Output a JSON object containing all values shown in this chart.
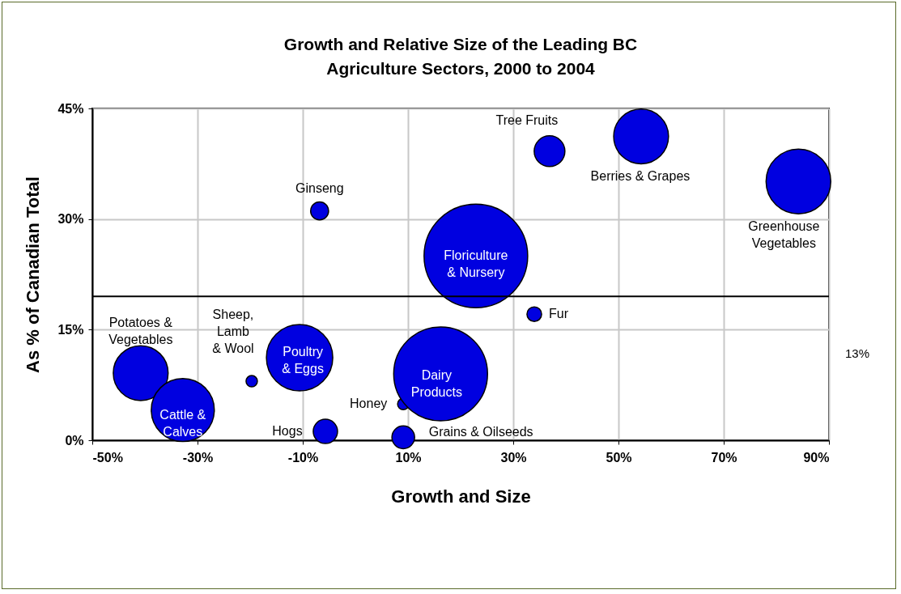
{
  "chart_data": {
    "type": "bubble",
    "title": "Growth and Relative Size of the Leading BC\nAgriculture Sectors, 2000 to 2004",
    "xlabel": "Growth and Size",
    "ylabel": "As % of Canadian Total",
    "x": [
      36.9,
      54.3,
      84.2,
      -6.8,
      22.9,
      34,
      -40.8,
      -19.7,
      -10.6,
      -32.8,
      -5.7,
      9.1,
      9.1,
      16.2
    ],
    "series": [
      {
        "color": "#0000e0",
        "values": [
          39.2,
          41.2,
          35.1,
          31.1,
          25.0,
          17.1,
          9.1,
          8.0,
          11.2,
          4.1,
          1.2,
          4.9,
          0.4,
          9.0
        ],
        "sizes": [
          0.088,
          0.28,
          0.39,
          0.03,
          1,
          0.02,
          0.28,
          0.012,
          0.41,
          0.37,
          0.055,
          0.012,
          0.048,
          0.82
        ]
      }
    ],
    "xlim": [
      -50,
      90
    ],
    "xticks": [
      {
        "value": -50,
        "label": "-50%"
      },
      {
        "value": -30,
        "label": "-30%"
      },
      {
        "value": -10,
        "label": "-10%"
      },
      {
        "value": 10,
        "label": "10%"
      },
      {
        "value": 30,
        "label": "30%"
      },
      {
        "value": 50,
        "label": "50%"
      },
      {
        "value": 70,
        "label": "70%"
      },
      {
        "value": 90,
        "label": "90%"
      }
    ],
    "ylim": [
      0,
      45
    ],
    "yticks": [
      {
        "value": 0,
        "label": "0%"
      },
      {
        "value": 15,
        "label": "15%"
      },
      {
        "value": 30,
        "label": "30%"
      },
      {
        "value": 45,
        "label": "45%"
      }
    ],
    "ref_lines": [
      {
        "axis": "y",
        "value": 19.5,
        "color": "#000000"
      }
    ],
    "annotations": [
      {
        "text": "Tree Fruits",
        "x": 36.9,
        "y": 39.2
      },
      {
        "text": "Berries & Grapes",
        "x": 54.3,
        "y": 41.2
      },
      {
        "text": "Greenhouse\nVegetables",
        "x": 84.2,
        "y": 35.1
      },
      {
        "text": "Ginseng",
        "x": -6.8,
        "y": 31.1
      },
      {
        "text": "Floriculture\n& Nursery",
        "x": 22.9,
        "y": 25.0
      },
      {
        "text": "Fur",
        "x": 34,
        "y": 17.1
      },
      {
        "text": "Potatoes &\nVegetables",
        "x": -40.8,
        "y": 9.1
      },
      {
        "text": "Sheep,\nLamb\n& Wool",
        "x": -19.7,
        "y": 8.0
      },
      {
        "text": "Poultry\n& Eggs",
        "x": -10.6,
        "y": 11.2
      },
      {
        "text": "Cattle &\nCalves",
        "x": -32.8,
        "y": 4.1
      },
      {
        "text": "Hogs",
        "x": -5.7,
        "y": 1.2
      },
      {
        "text": "Honey",
        "x": 9.1,
        "y": 4.9
      },
      {
        "text": "Grains & Oilseeds",
        "x": 9.1,
        "y": 0.4
      },
      {
        "text": "Dairy\nProducts",
        "x": 16.2,
        "y": 9.0
      },
      "13%"
    ],
    "grid": true,
    "legend": false,
    "marker": "circle"
  }
}
